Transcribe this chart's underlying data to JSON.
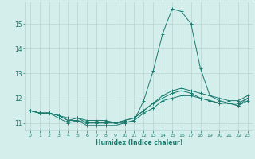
{
  "xlabel": "Humidex (Indice chaleur)",
  "ylabel": "",
  "xlim": [
    -0.5,
    23.5
  ],
  "ylim": [
    10.7,
    15.9
  ],
  "background_color": "#d4eeeb",
  "grid_color": "#b8d4d0",
  "line_color": "#1a7a6e",
  "xtick_labels": [
    "0",
    "1",
    "2",
    "3",
    "4",
    "5",
    "6",
    "7",
    "8",
    "9",
    "10",
    "11",
    "12",
    "13",
    "14",
    "15",
    "16",
    "17",
    "18",
    "19",
    "20",
    "21",
    "22",
    "23"
  ],
  "ytick_labels": [
    "11",
    "12",
    "13",
    "14",
    "15"
  ],
  "ytick_values": [
    11,
    12,
    13,
    14,
    15
  ],
  "series": [
    {
      "x": [
        0,
        1,
        2,
        3,
        4,
        5,
        6,
        7,
        8,
        9,
        10,
        11,
        12,
        13,
        14,
        15,
        16,
        17,
        18,
        19,
        20,
        21,
        22,
        23
      ],
      "y": [
        11.5,
        11.4,
        11.4,
        11.2,
        11.0,
        11.1,
        10.9,
        10.9,
        10.9,
        10.9,
        11.0,
        11.1,
        11.9,
        13.1,
        14.6,
        15.6,
        15.5,
        15.0,
        13.2,
        12.1,
        11.9,
        11.8,
        11.8,
        12.0
      ]
    },
    {
      "x": [
        0,
        1,
        2,
        3,
        4,
        5,
        6,
        7,
        8,
        9,
        10,
        11,
        12,
        13,
        14,
        15,
        16,
        17,
        18,
        19,
        20,
        21,
        22,
        23
      ],
      "y": [
        11.5,
        11.4,
        11.4,
        11.3,
        11.1,
        11.2,
        11.0,
        11.0,
        11.0,
        11.0,
        11.1,
        11.2,
        11.5,
        11.8,
        12.1,
        12.3,
        12.4,
        12.3,
        12.2,
        12.1,
        12.0,
        11.9,
        11.9,
        12.1
      ]
    },
    {
      "x": [
        0,
        1,
        2,
        3,
        4,
        5,
        6,
        7,
        8,
        9,
        10,
        11,
        12,
        13,
        14,
        15,
        16,
        17,
        18,
        19,
        20,
        21,
        22,
        23
      ],
      "y": [
        11.5,
        11.4,
        11.4,
        11.3,
        11.1,
        11.1,
        11.0,
        11.0,
        11.0,
        11.0,
        11.1,
        11.2,
        11.5,
        11.8,
        12.0,
        12.2,
        12.3,
        12.2,
        12.0,
        11.9,
        11.8,
        11.8,
        11.7,
        12.0
      ]
    },
    {
      "x": [
        0,
        1,
        2,
        3,
        4,
        5,
        6,
        7,
        8,
        9,
        10,
        11,
        12,
        13,
        14,
        15,
        16,
        17,
        18,
        19,
        20,
        21,
        22,
        23
      ],
      "y": [
        11.5,
        11.4,
        11.4,
        11.3,
        11.2,
        11.2,
        11.1,
        11.1,
        11.1,
        11.0,
        11.0,
        11.1,
        11.4,
        11.6,
        11.9,
        12.0,
        12.1,
        12.1,
        12.0,
        11.9,
        11.8,
        11.8,
        11.7,
        11.9
      ]
    }
  ]
}
